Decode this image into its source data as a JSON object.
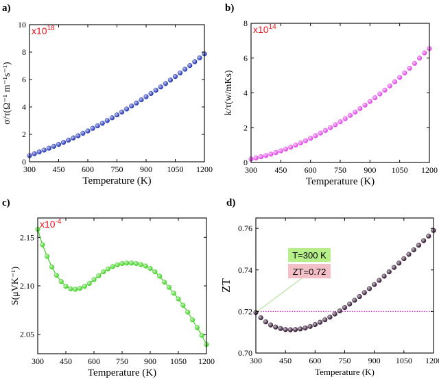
{
  "chart_data": [
    {
      "panel_label": "a)",
      "type": "scatter",
      "ylabel": "σ/τ(Ω⁻¹ m⁻¹s⁻¹)",
      "xlabel": "Temperature (K)",
      "multiplier_base": "x10",
      "multiplier_exp": "18",
      "xlim": [
        300,
        1200
      ],
      "ylim": [
        0,
        10
      ],
      "xticks": [
        "300",
        "450",
        "600",
        "750",
        "900",
        "1050",
        "1200"
      ],
      "yticks": [
        "0",
        "2",
        "4",
        "6",
        "8",
        "10"
      ],
      "xtick_values": [
        300,
        450,
        600,
        750,
        900,
        1050,
        1200
      ],
      "ytick_values": [
        0,
        2,
        4,
        6,
        8,
        10
      ],
      "series": [
        {
          "color": "#1c2fb4",
          "x": [
            300,
            325,
            350,
            375,
            400,
            425,
            450,
            475,
            500,
            525,
            550,
            575,
            600,
            625,
            650,
            675,
            700,
            725,
            750,
            775,
            800,
            825,
            850,
            875,
            900,
            925,
            950,
            975,
            1000,
            1025,
            1050,
            1075,
            1100,
            1125,
            1150,
            1175,
            1200
          ],
          "y": [
            0.45,
            0.59,
            0.72,
            0.85,
            0.99,
            1.13,
            1.27,
            1.42,
            1.58,
            1.74,
            1.9,
            2.08,
            2.25,
            2.44,
            2.62,
            2.81,
            3.01,
            3.21,
            3.42,
            3.63,
            3.85,
            4.07,
            4.29,
            4.52,
            4.75,
            4.98,
            5.22,
            5.46,
            5.71,
            5.96,
            6.22,
            6.48,
            6.75,
            7.02,
            7.3,
            7.58,
            7.87
          ]
        }
      ]
    },
    {
      "panel_label": "b)",
      "type": "scatter",
      "ylabel": "k/τ(w/mKs)",
      "xlabel": "Temperature (K)",
      "multiplier_base": "x10",
      "multiplier_exp": "14",
      "xlim": [
        300,
        1200
      ],
      "ylim": [
        0,
        8
      ],
      "xticks": [
        "300",
        "450",
        "600",
        "750",
        "900",
        "1050",
        "1200"
      ],
      "yticks": [
        "0",
        "2",
        "4",
        "6",
        "8"
      ],
      "xtick_values": [
        300,
        450,
        600,
        750,
        900,
        1050,
        1200
      ],
      "ytick_values": [
        0,
        2,
        4,
        6,
        8
      ],
      "series": [
        {
          "color": "#e040e8",
          "x": [
            300,
            325,
            350,
            375,
            400,
            425,
            450,
            475,
            500,
            525,
            550,
            575,
            600,
            625,
            650,
            675,
            700,
            725,
            750,
            775,
            800,
            825,
            850,
            875,
            900,
            925,
            950,
            975,
            1000,
            1025,
            1050,
            1075,
            1100,
            1125,
            1150,
            1175,
            1200
          ],
          "y": [
            0.2,
            0.26,
            0.33,
            0.4,
            0.48,
            0.57,
            0.67,
            0.77,
            0.88,
            1.0,
            1.12,
            1.25,
            1.39,
            1.54,
            1.69,
            1.84,
            2.0,
            2.17,
            2.34,
            2.52,
            2.71,
            2.9,
            3.1,
            3.3,
            3.51,
            3.72,
            3.94,
            4.16,
            4.4,
            4.64,
            4.89,
            5.15,
            5.42,
            5.7,
            6.0,
            6.3,
            6.55
          ]
        }
      ]
    },
    {
      "panel_label": "c)",
      "type": "line",
      "ylabel": "S(μVK⁻¹)",
      "xlabel": "Temperature (K)",
      "multiplier_base": "x10",
      "multiplier_exp": "-4",
      "xlim": [
        300,
        1200
      ],
      "ylim": [
        2.03,
        2.17
      ],
      "xticks": [
        "300",
        "450",
        "600",
        "750",
        "900",
        "1050",
        "1200"
      ],
      "yticks": [
        "2.05",
        "2.10",
        "2.15"
      ],
      "xtick_values": [
        300,
        450,
        600,
        750,
        900,
        1050,
        1200
      ],
      "ytick_values": [
        2.05,
        2.1,
        2.15
      ],
      "series": [
        {
          "color": "#3ed11f",
          "x": [
            300,
            325,
            350,
            375,
            400,
            425,
            450,
            475,
            500,
            525,
            550,
            575,
            600,
            625,
            650,
            675,
            700,
            725,
            750,
            775,
            800,
            825,
            850,
            875,
            900,
            925,
            950,
            975,
            1000,
            1025,
            1050,
            1075,
            1100,
            1125,
            1150,
            1175,
            1200
          ],
          "y": [
            2.1585,
            2.1425,
            2.1305,
            2.1195,
            2.111,
            2.1045,
            2.0995,
            2.097,
            2.0965,
            2.0975,
            2.0995,
            2.1025,
            2.1065,
            2.1105,
            2.1145,
            2.1175,
            2.12,
            2.1218,
            2.123,
            2.1235,
            2.1235,
            2.123,
            2.122,
            2.1205,
            2.118,
            2.1145,
            2.11,
            2.104,
            2.0985,
            2.0925,
            2.0865,
            2.08,
            2.073,
            2.065,
            2.057,
            2.049,
            2.0395
          ]
        }
      ]
    },
    {
      "panel_label": "d)",
      "type": "scatter",
      "ylabel": "ZT",
      "xlabel": "Temperature (K)",
      "xlim": [
        300,
        1200
      ],
      "ylim": [
        0.7,
        0.765
      ],
      "xticks": [
        "300",
        "450",
        "600",
        "750",
        "900",
        "1050",
        "1200"
      ],
      "yticks": [
        "0.70",
        "0.72",
        "0.74",
        "0.76"
      ],
      "xtick_values": [
        300,
        450,
        600,
        750,
        900,
        1050,
        1200
      ],
      "ytick_values": [
        0.7,
        0.72,
        0.74,
        0.76
      ],
      "reference_line_y": 0.72,
      "reference_line_color": "#cc33cc",
      "annotation_T": "T=300 K",
      "annotation_ZT": "ZT=0.72",
      "annotation_T_bg": "#b6ee8a",
      "annotation_ZT_bg": "#f4c0c8",
      "series": [
        {
          "color": "#2b0f2b",
          "x": [
            300,
            325,
            350,
            375,
            400,
            425,
            450,
            475,
            500,
            525,
            550,
            575,
            600,
            625,
            650,
            675,
            700,
            725,
            750,
            775,
            800,
            825,
            850,
            875,
            900,
            925,
            950,
            975,
            1000,
            1025,
            1050,
            1075,
            1100,
            1125,
            1150,
            1175,
            1200
          ],
          "y": [
            0.7195,
            0.717,
            0.715,
            0.7135,
            0.7125,
            0.7118,
            0.7113,
            0.7112,
            0.7113,
            0.7116,
            0.7121,
            0.7128,
            0.7137,
            0.7148,
            0.716,
            0.7173,
            0.7188,
            0.7203,
            0.7219,
            0.7236,
            0.7254,
            0.7272,
            0.7291,
            0.731,
            0.733,
            0.735,
            0.737,
            0.7391,
            0.7412,
            0.7433,
            0.7454,
            0.7475,
            0.7497,
            0.7519,
            0.7541,
            0.7563,
            0.759
          ]
        }
      ]
    }
  ]
}
